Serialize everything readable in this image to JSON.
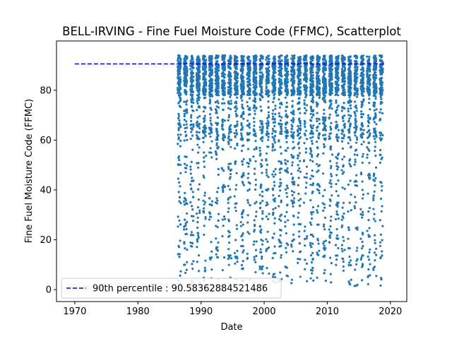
{
  "chart_data": {
    "type": "scatter",
    "title": "BELL-IRVING - Fine Fuel Moisture Code (FFMC), Scatterplot",
    "xlabel": "Date",
    "ylabel": "Fine Fuel Moisture Code (FFMC)",
    "xlim": [
      1967.1,
      2022.6
    ],
    "ylim": [
      -4.8,
      99.8
    ],
    "x_ticks": [
      1970,
      1980,
      1990,
      2000,
      2010,
      2020
    ],
    "y_ticks": [
      0,
      20,
      40,
      60,
      80
    ],
    "x_tick_labels": [
      "1970",
      "1980",
      "1990",
      "2000",
      "2010",
      "2020"
    ],
    "y_tick_labels": [
      "0",
      "20",
      "40",
      "60",
      "80"
    ],
    "grid": false,
    "legend_position": "lower-left",
    "series_color": "#1f77b4",
    "percentile_color": "#0000cc",
    "year_range": [
      1986,
      2018
    ],
    "season_start_fraction": 0.3,
    "season_end_fraction": 0.8,
    "percentile": {
      "label": "90th percentile : 90.58362884521486",
      "value": 90.58362884521486,
      "x_start": 1970,
      "x_end": 2019
    }
  }
}
